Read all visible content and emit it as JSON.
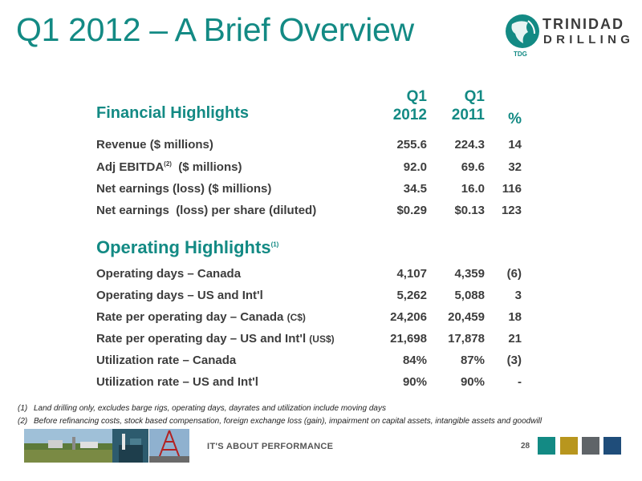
{
  "title": "Q1 2012 – A Brief Overview",
  "logo": {
    "line1": "TRINIDAD",
    "line2": "DRILLING",
    "badge": "TDG"
  },
  "financial": {
    "heading": "Financial Highlights",
    "col1": {
      "line1": "Q1",
      "line2": "2012"
    },
    "col2": {
      "line1": "Q1",
      "line2": "2011"
    },
    "col3": "%",
    "rows": [
      {
        "label": "Revenue ($ millions)",
        "q1_2012": "255.6",
        "q1_2011": "224.3",
        "pct": "14"
      },
      {
        "label_pre": "Adj EBITDA",
        "label_sup": "(2)",
        "label_post": "  ($ millions)",
        "q1_2012": "92.0",
        "q1_2011": "69.6",
        "pct": "32"
      },
      {
        "label": "Net earnings (loss) ($ millions)",
        "q1_2012": "34.5",
        "q1_2011": "16.0",
        "pct": "116"
      },
      {
        "label": "Net earnings  (loss) per share (diluted)",
        "q1_2012": "$0.29",
        "q1_2011": "$0.13",
        "pct": "123"
      }
    ]
  },
  "operating": {
    "heading": "Operating Highlights",
    "heading_sup": "(1)",
    "rows": [
      {
        "label": "Operating days – Canada",
        "q1_2012": "4,107",
        "q1_2011": "4,359",
        "pct": "(6)"
      },
      {
        "label": "Operating days – US and Int'l",
        "q1_2012": "5,262",
        "q1_2011": "5,088",
        "pct": "3"
      },
      {
        "label": "Rate per operating day – Canada",
        "label_small": "(C$)",
        "q1_2012": "24,206",
        "q1_2011": "20,459",
        "pct": "18"
      },
      {
        "label": "Rate per operating day – US and Int'l",
        "label_small": "(US$)",
        "q1_2012": "21,698",
        "q1_2011": "17,878",
        "pct": "21"
      },
      {
        "label": "Utilization rate – Canada",
        "q1_2012": "84%",
        "q1_2011": "87%",
        "pct": "(3)"
      },
      {
        "label": "Utilization rate – US and Int'l",
        "q1_2012": "90%",
        "q1_2011": "90%",
        "pct": "-"
      }
    ]
  },
  "footnotes": [
    {
      "num": "(1)",
      "text": "Land drilling only, excludes barge rigs, operating days, dayrates and utilization include moving days"
    },
    {
      "num": "(2)",
      "text": "Before refinancing costs, stock based compensation, foreign exchange loss (gain), impairment on capital assets, intangible assets and goodwill"
    }
  ],
  "footer": {
    "tagline": "IT'S ABOUT PERFORMANCE",
    "page_number": "28",
    "square_colors": [
      "#138a84",
      "#b8961e",
      "#5f6468",
      "#1f4d7a"
    ]
  }
}
